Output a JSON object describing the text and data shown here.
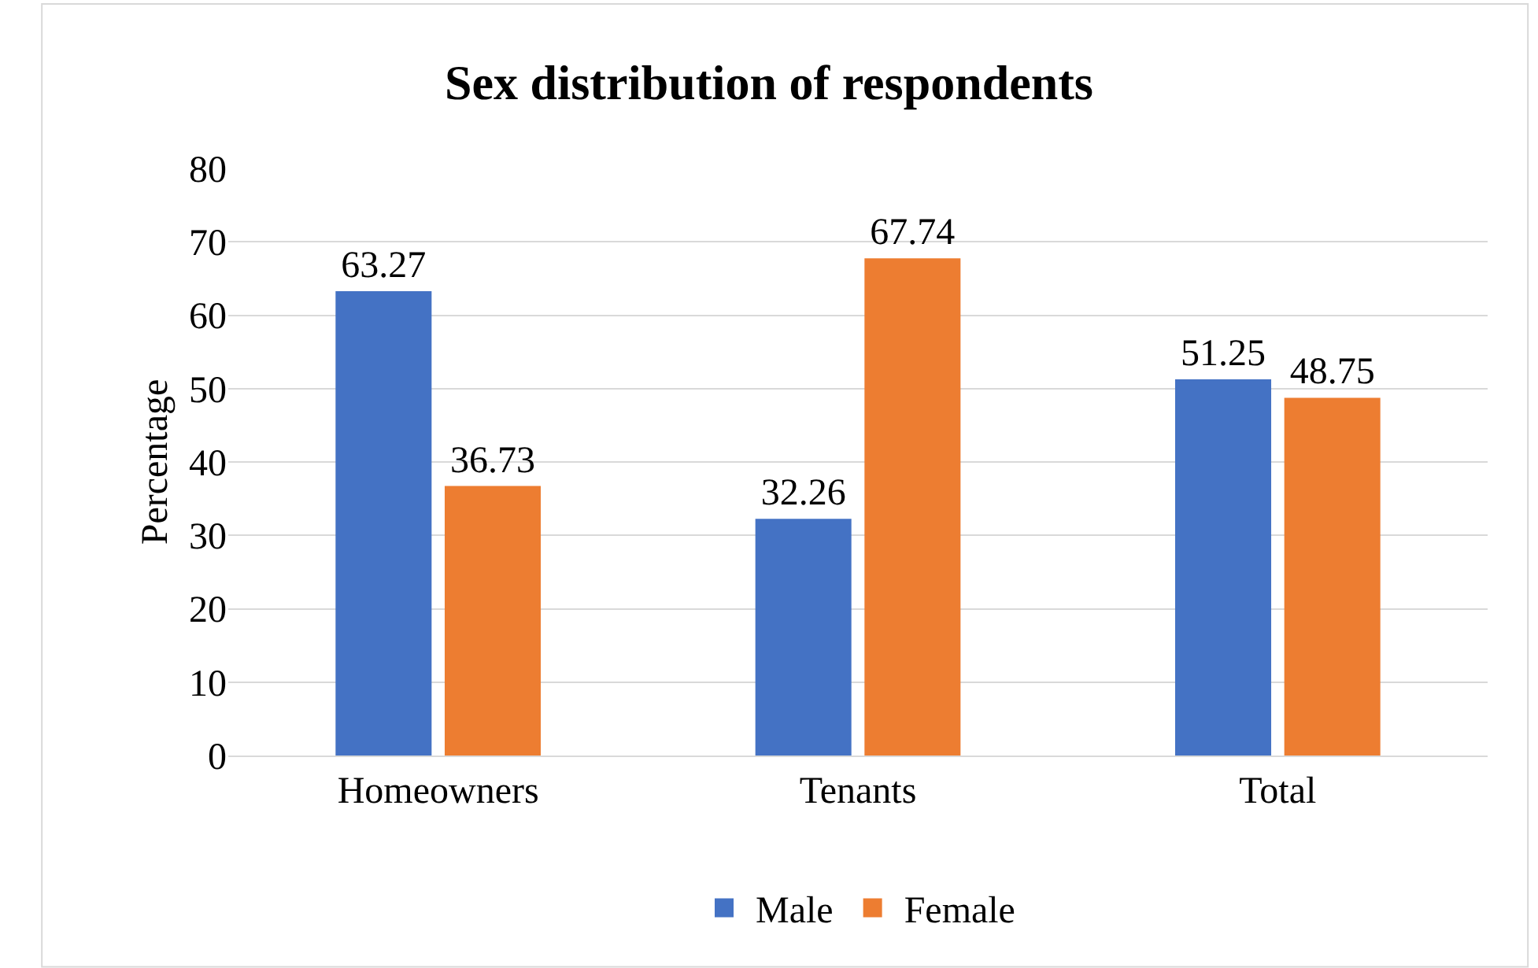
{
  "chart_data": {
    "type": "bar",
    "title": "Sex distribution of respondents",
    "ylabel": "Percentage",
    "categories": [
      "Homeowners",
      "Tenants",
      "Total"
    ],
    "series": [
      {
        "name": "Male",
        "color": "#4472c4",
        "values": [
          63.27,
          32.26,
          51.25
        ]
      },
      {
        "name": "Female",
        "color": "#ed7d31",
        "values": [
          36.73,
          67.74,
          48.75
        ]
      }
    ],
    "ylim": [
      0,
      80
    ],
    "yticks": [
      0,
      10,
      20,
      30,
      40,
      50,
      60,
      70,
      80
    ],
    "grid": "y",
    "legend": "bottom",
    "data_labels": true
  }
}
